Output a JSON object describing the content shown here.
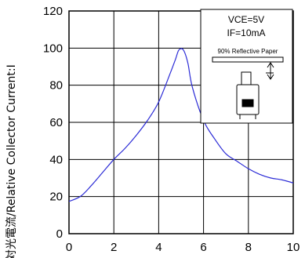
{
  "chart_data": {
    "type": "line",
    "title": "",
    "xlabel": "",
    "ylabel": "対光電流/Relative Collector Current:I",
    "xlim": [
      0,
      10
    ],
    "ylim": [
      0,
      120
    ],
    "x_ticks": [
      "0",
      "2",
      "4",
      "6",
      "8",
      "10"
    ],
    "y_ticks": [
      "0",
      "20",
      "40",
      "60",
      "80",
      "100",
      "120"
    ],
    "grid": true,
    "series": [
      {
        "color": "#2b2bd6",
        "x": [
          -0.1,
          0.5,
          1.0,
          1.5,
          2.0,
          2.5,
          3.0,
          3.5,
          4.0,
          4.5,
          4.75,
          4.9,
          5.1,
          5.3,
          5.5,
          6.0,
          6.5,
          7.0,
          7.5,
          8.0,
          8.5,
          9.0,
          9.5,
          10.1
        ],
        "y": [
          17,
          20,
          26,
          33,
          40,
          46,
          53,
          61,
          71,
          86,
          94,
          99,
          99,
          92,
          79,
          61,
          51,
          43,
          39,
          35,
          32,
          30,
          29,
          27
        ]
      }
    ],
    "annotation": {
      "vce": "VCE=5V",
      "if": "IF=10mA",
      "paper": "90% Reflective Paper"
    }
  }
}
